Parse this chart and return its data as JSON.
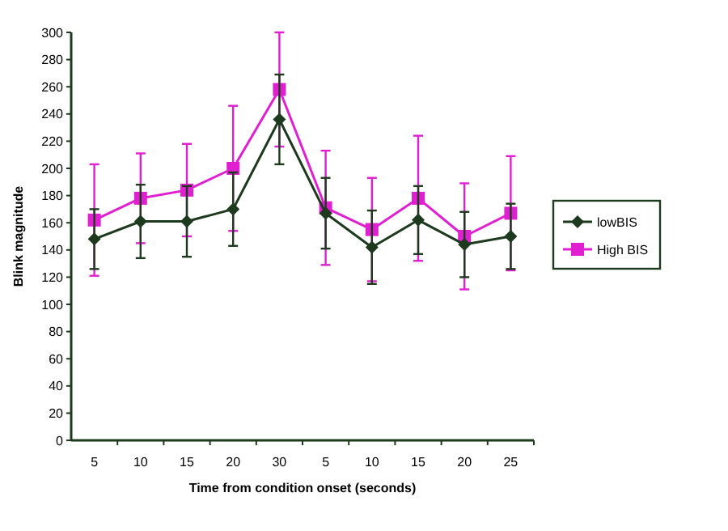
{
  "chart_data": {
    "type": "line",
    "xlabel": "Time from condition onset (seconds)",
    "ylabel": "Blink magnitude",
    "categories": [
      "5",
      "10",
      "15",
      "20",
      "30",
      "5",
      "10",
      "15",
      "20",
      "25"
    ],
    "ylim": [
      0,
      300
    ],
    "yticks": [
      0,
      20,
      40,
      60,
      80,
      100,
      120,
      140,
      160,
      180,
      200,
      220,
      240,
      260,
      280,
      300
    ],
    "legend": "right",
    "grid": false,
    "series": [
      {
        "name": "lowBIS",
        "color": "#1e3a1e",
        "marker": "diamond",
        "values": [
          148,
          161,
          161,
          170,
          236,
          167,
          142,
          162,
          144,
          150
        ],
        "errors": [
          22,
          27,
          26,
          27,
          33,
          26,
          27,
          25,
          24,
          24
        ]
      },
      {
        "name": "High BIS",
        "color": "#e020d0",
        "marker": "square",
        "values": [
          162,
          178,
          184,
          200,
          258,
          171,
          155,
          178,
          150,
          167
        ],
        "errors": [
          41,
          33,
          34,
          46,
          42,
          42,
          38,
          46,
          39,
          42
        ]
      }
    ]
  }
}
